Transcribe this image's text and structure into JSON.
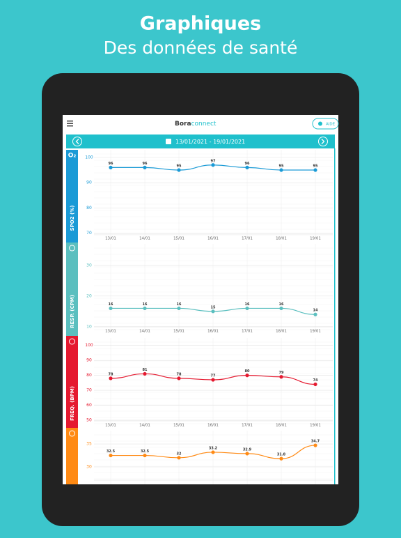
{
  "header": {
    "title": "Graphiques",
    "subtitle": "Des données de santé"
  },
  "app": {
    "logo_bold": "Bora",
    "logo_light": "connect",
    "help": "AIDE",
    "date_range": "13/01/2021 - 19/01/2021"
  },
  "chart_data": [
    {
      "type": "line",
      "y_label": "SPO2 (%)",
      "icon_label": "O₂",
      "color": "#1a9ad6",
      "categories": [
        "13/01",
        "14/01",
        "15/01",
        "16/01",
        "17/01",
        "18/01",
        "19/01"
      ],
      "values": [
        96,
        96,
        95,
        97,
        96,
        95,
        95
      ],
      "ylim": [
        68,
        103
      ],
      "yticks": [
        70,
        80,
        90,
        100
      ]
    },
    {
      "type": "line",
      "y_label": "RESP. (CPM)",
      "color": "#5bbfbf",
      "categories": [
        "13/01",
        "14/01",
        "15/01",
        "16/01",
        "17/01",
        "18/01",
        "19/01"
      ],
      "values": [
        16,
        16,
        16,
        15,
        16,
        16,
        14
      ],
      "ylim": [
        8.6,
        37
      ],
      "yticks": [
        10,
        20,
        30
      ]
    },
    {
      "type": "line",
      "y_label": "FREQ. (BPM)",
      "color": "#e5192f",
      "categories": [
        "13/01",
        "14/01",
        "15/01",
        "16/01",
        "17/01",
        "18/01",
        "19/01"
      ],
      "values": [
        78,
        81,
        78,
        77,
        80,
        79,
        74
      ],
      "ylim": [
        46.7,
        105
      ],
      "yticks": [
        50,
        60,
        70,
        80,
        90,
        100
      ]
    },
    {
      "type": "line",
      "color": "#ff8a14",
      "categories": [
        null,
        null,
        null,
        null,
        null,
        null,
        null
      ],
      "values": [
        32.5,
        32.5,
        32,
        33.2,
        32.9,
        31.8,
        34.7
      ],
      "ylim": [
        26.2,
        37.9
      ],
      "yticks": [
        30,
        35
      ]
    }
  ]
}
